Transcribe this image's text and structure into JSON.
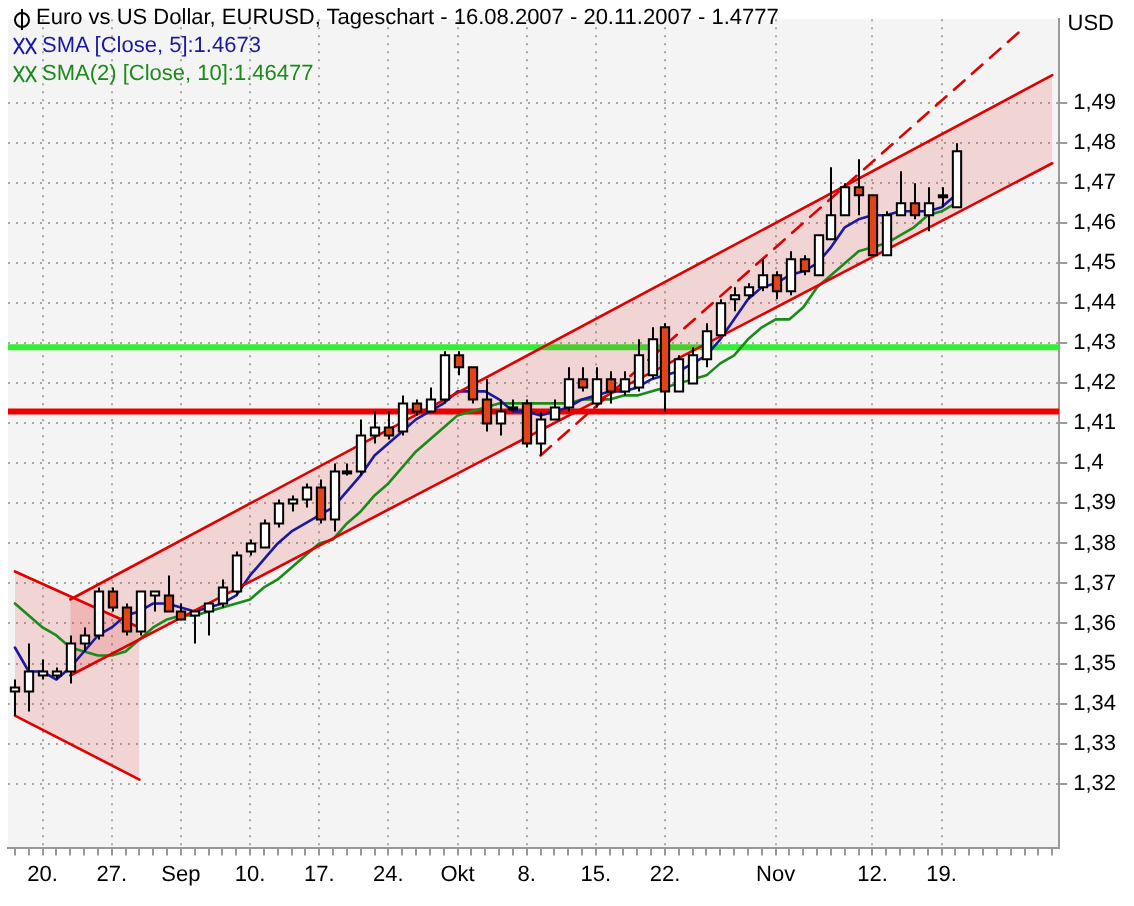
{
  "chart_data": {
    "type": "candlestick",
    "title": "Euro vs US Dollar, EURUSD, Tageschart - 16.08.2007 - 20.11.2007 - 1.4777",
    "ylabel": "USD",
    "categories": [
      null,
      null,
      "20.",
      null,
      null,
      null,
      null,
      "27.",
      null,
      null,
      null,
      null,
      "Sep",
      null,
      null,
      null,
      null,
      "10.",
      null,
      null,
      null,
      null,
      "17.",
      null,
      null,
      null,
      null,
      "24.",
      null,
      null,
      null,
      null,
      "Okt",
      null,
      null,
      null,
      null,
      "8.",
      null,
      null,
      null,
      null,
      "15.",
      null,
      null,
      null,
      null,
      "22.",
      null,
      null,
      null,
      null,
      null,
      null,
      null,
      "Nov",
      null,
      null,
      null,
      null,
      null,
      null,
      "12.",
      null,
      null,
      null,
      null,
      "19.",
      null,
      null,
      null,
      null,
      null,
      null,
      null,
      null
    ],
    "ohlc": [
      [
        1.343,
        1.346,
        1.337,
        1.344
      ],
      [
        1.343,
        1.355,
        1.338,
        1.348
      ],
      [
        1.347,
        1.351,
        1.346,
        1.348
      ],
      [
        1.347,
        1.349,
        1.346,
        1.348
      ],
      [
        1.348,
        1.357,
        1.345,
        1.355
      ],
      [
        1.355,
        1.359,
        1.353,
        1.357
      ],
      [
        1.357,
        1.369,
        1.356,
        1.368
      ],
      [
        1.368,
        1.369,
        1.363,
        1.364
      ],
      [
        1.364,
        1.365,
        1.357,
        1.358
      ],
      [
        1.358,
        1.368,
        1.357,
        1.368
      ],
      [
        1.367,
        1.368,
        1.363,
        1.368
      ],
      [
        1.367,
        1.372,
        1.363,
        1.363
      ],
      [
        1.363,
        1.365,
        1.361,
        1.361
      ],
      [
        1.362,
        1.363,
        1.355,
        1.363
      ],
      [
        1.363,
        1.365,
        1.357,
        1.365
      ],
      [
        1.365,
        1.371,
        1.364,
        1.369
      ],
      [
        1.368,
        1.378,
        1.367,
        1.377
      ],
      [
        1.378,
        1.381,
        1.377,
        1.38
      ],
      [
        1.379,
        1.386,
        1.379,
        1.385
      ],
      [
        1.385,
        1.391,
        1.384,
        1.39
      ],
      [
        1.39,
        1.392,
        1.388,
        1.391
      ],
      [
        1.391,
        1.395,
        1.389,
        1.394
      ],
      [
        1.394,
        1.396,
        1.385,
        1.386
      ],
      [
        1.386,
        1.4,
        1.383,
        1.398
      ],
      [
        1.398,
        1.4,
        1.397,
        1.398
      ],
      [
        1.398,
        1.411,
        1.397,
        1.407
      ],
      [
        1.407,
        1.413,
        1.405,
        1.409
      ],
      [
        1.409,
        1.413,
        1.406,
        1.407
      ],
      [
        1.408,
        1.417,
        1.407,
        1.415
      ],
      [
        1.415,
        1.416,
        1.412,
        1.413
      ],
      [
        1.413,
        1.419,
        1.413,
        1.416
      ],
      [
        1.416,
        1.428,
        1.415,
        1.427
      ],
      [
        1.427,
        1.428,
        1.422,
        1.424
      ],
      [
        1.424,
        1.424,
        1.415,
        1.416
      ],
      [
        1.416,
        1.421,
        1.408,
        1.41
      ],
      [
        1.41,
        1.416,
        1.407,
        1.413
      ],
      [
        1.414,
        1.416,
        1.413,
        1.414
      ],
      [
        1.415,
        1.416,
        1.404,
        1.405
      ],
      [
        1.405,
        1.413,
        1.402,
        1.411
      ],
      [
        1.411,
        1.416,
        1.411,
        1.414
      ],
      [
        1.414,
        1.424,
        1.413,
        1.421
      ],
      [
        1.421,
        1.424,
        1.418,
        1.419
      ],
      [
        1.415,
        1.424,
        1.414,
        1.421
      ],
      [
        1.421,
        1.423,
        1.415,
        1.418
      ],
      [
        1.418,
        1.423,
        1.417,
        1.421
      ],
      [
        1.419,
        1.431,
        1.418,
        1.427
      ],
      [
        1.422,
        1.434,
        1.421,
        1.431
      ],
      [
        1.434,
        1.435,
        1.413,
        1.418
      ],
      [
        1.418,
        1.427,
        1.418,
        1.426
      ],
      [
        1.42,
        1.429,
        1.42,
        1.427
      ],
      [
        1.426,
        1.435,
        1.424,
        1.433
      ],
      [
        1.432,
        1.441,
        1.432,
        1.44
      ],
      [
        1.441,
        1.444,
        1.438,
        1.442
      ],
      [
        1.442,
        1.445,
        1.441,
        1.444
      ],
      [
        1.444,
        1.451,
        1.443,
        1.447
      ],
      [
        1.447,
        1.448,
        1.441,
        1.443
      ],
      [
        1.443,
        1.453,
        1.442,
        1.451
      ],
      [
        1.451,
        1.452,
        1.447,
        1.448
      ],
      [
        1.447,
        1.457,
        1.447,
        1.457
      ],
      [
        1.456,
        1.474,
        1.456,
        1.462
      ],
      [
        1.462,
        1.47,
        1.462,
        1.469
      ],
      [
        1.469,
        1.476,
        1.462,
        1.467
      ],
      [
        1.467,
        1.467,
        1.452,
        1.452
      ],
      [
        1.452,
        1.463,
        1.452,
        1.462
      ],
      [
        1.462,
        1.473,
        1.462,
        1.465
      ],
      [
        1.465,
        1.47,
        1.461,
        1.462
      ],
      [
        1.462,
        1.469,
        1.458,
        1.465
      ],
      [
        1.467,
        1.469,
        1.464,
        1.467
      ],
      [
        1.464,
        1.48,
        1.464,
        1.478
      ],
      null,
      null,
      null,
      null,
      null,
      null,
      null
    ],
    "colors": [
      "#ffffff",
      "#ffffff",
      "#ffffff",
      "#ffffff",
      "#ffffff",
      "#ffffff",
      "#ffffff",
      "#e04418",
      "#e04418",
      "#ffffff",
      "#ffffff",
      "#e04418",
      "#e04418",
      "#ffffff",
      "#ffffff",
      "#ffffff",
      "#ffffff",
      "#ffffff",
      "#ffffff",
      "#ffffff",
      "#ffffff",
      "#ffffff",
      "#e04418",
      "#ffffff",
      "#ffffff",
      "#ffffff",
      "#ffffff",
      "#e04418",
      "#ffffff",
      "#e04418",
      "#ffffff",
      "#ffffff",
      "#e04418",
      "#e04418",
      "#e04418",
      "#ffffff",
      "#ffffff",
      "#e04418",
      "#ffffff",
      "#ffffff",
      "#ffffff",
      "#e04418",
      "#ffffff",
      "#e04418",
      "#ffffff",
      "#ffffff",
      "#ffffff",
      "#e04418",
      "#ffffff",
      "#ffffff",
      "#ffffff",
      "#ffffff",
      "#ffffff",
      "#ffffff",
      "#ffffff",
      "#e04418",
      "#ffffff",
      "#e04418",
      "#ffffff",
      "#ffffff",
      "#ffffff",
      "#e04418",
      "#e04418",
      "#ffffff",
      "#ffffff",
      "#e04418",
      "#ffffff",
      "#ffffff",
      "#ffffff",
      null,
      null,
      null,
      null,
      null,
      null,
      null
    ],
    "series": [
      {
        "type": "line",
        "color": "#e00000",
        "upper": [
          null,
          null,
          null,
          null,
          1.366,
          null,
          null,
          null,
          null,
          null,
          null,
          null,
          null,
          null,
          null,
          null,
          null,
          null,
          null,
          null,
          null,
          null,
          null,
          null,
          null,
          null,
          null,
          null,
          null,
          null,
          null,
          null,
          null,
          null,
          null,
          null,
          null,
          null,
          null,
          null,
          null,
          null,
          null,
          null,
          null,
          null,
          null,
          null,
          null,
          null,
          null,
          null,
          null,
          null,
          null,
          null,
          null,
          null,
          null,
          null,
          null,
          null,
          null,
          null,
          null,
          null,
          null,
          null,
          null,
          null,
          null,
          null,
          null,
          null,
          null,
          1.497
        ],
        "values": [
          null,
          null,
          null,
          null,
          1.366,
          null,
          null,
          null,
          null,
          null,
          null,
          null,
          null,
          null,
          null,
          null,
          null,
          null,
          null,
          null,
          null,
          null,
          null,
          null,
          null,
          null,
          null,
          null,
          null,
          null,
          null,
          null,
          null,
          null,
          null,
          null,
          null,
          null,
          null,
          null,
          null,
          null,
          null,
          null,
          null,
          null,
          null,
          null,
          null,
          null,
          null,
          null,
          null,
          null,
          null,
          null,
          null,
          null,
          null,
          null,
          null,
          null,
          null,
          null,
          null,
          null,
          null,
          null,
          null,
          null,
          null,
          null,
          null,
          null,
          null,
          1.497
        ],
        "lower": [
          null,
          null,
          null,
          null,
          1.347,
          null,
          null,
          null,
          null,
          null,
          null,
          null,
          null,
          null,
          null,
          null,
          null,
          null,
          null,
          null,
          null,
          null,
          null,
          null,
          null,
          null,
          null,
          null,
          null,
          null,
          null,
          null,
          null,
          null,
          null,
          null,
          null,
          null,
          null,
          null,
          null,
          null,
          null,
          null,
          null,
          null,
          null,
          null,
          null,
          null,
          null,
          null,
          null,
          null,
          null,
          null,
          null,
          null,
          null,
          null,
          null,
          null,
          null,
          null,
          null,
          null,
          null,
          null,
          null,
          null,
          null,
          null,
          null,
          null,
          null,
          1.475
        ]
      },
      {
        "type": "line",
        "color": "#e00000",
        "upper": [
          1.373,
          null,
          null,
          null,
          null,
          null,
          null,
          null,
          null,
          1.359,
          null,
          null,
          null,
          null,
          null,
          null,
          null,
          null,
          null,
          null,
          null,
          null,
          null,
          null,
          null,
          null,
          null,
          null,
          null,
          null,
          null,
          null,
          null,
          null,
          null,
          null,
          null,
          null,
          null,
          null,
          null,
          null,
          null,
          null,
          null,
          null,
          null,
          null,
          null,
          null,
          null,
          null,
          null,
          null,
          null,
          null,
          null,
          null,
          null,
          null,
          null,
          null,
          null,
          null,
          null,
          null,
          null,
          null,
          null,
          null,
          null,
          null,
          null,
          null,
          null,
          null
        ],
        "values": [
          1.373,
          null,
          null,
          null,
          null,
          null,
          null,
          null,
          null,
          1.359,
          null,
          null,
          null,
          null,
          null,
          null,
          null,
          null,
          null,
          null,
          null,
          null,
          null,
          null,
          null,
          null,
          null,
          null,
          null,
          null,
          null,
          null,
          null,
          null,
          null,
          null,
          null,
          null,
          null,
          null,
          null,
          null,
          null,
          null,
          null,
          null,
          null,
          null,
          null,
          null,
          null,
          null,
          null,
          null,
          null,
          null,
          null,
          null,
          null,
          null,
          null,
          null,
          null,
          null,
          null,
          null,
          null,
          null,
          null,
          null,
          null,
          null,
          null,
          null,
          null,
          null
        ],
        "lower": [
          1.337,
          null,
          null,
          null,
          null,
          null,
          null,
          null,
          null,
          1.321,
          null,
          null,
          null,
          null,
          null,
          null,
          null,
          null,
          null,
          null,
          null,
          null,
          null,
          null,
          null,
          null,
          null,
          null,
          null,
          null,
          null,
          null,
          null,
          null,
          null,
          null,
          null,
          null,
          null,
          null,
          null,
          null,
          null,
          null,
          null,
          null,
          null,
          null,
          null,
          null,
          null,
          null,
          null,
          null,
          null,
          null,
          null,
          null,
          null,
          null,
          null,
          null,
          null,
          null,
          null,
          null,
          null,
          null,
          null,
          null,
          null,
          null,
          null,
          null,
          null,
          null
        ]
      },
      {
        "type": "line",
        "color": "#e00000",
        "values": [
          null,
          null,
          null,
          null,
          1.347,
          null,
          null,
          null,
          null,
          null,
          null,
          null,
          null,
          null,
          null,
          null,
          null,
          null,
          null,
          null,
          null,
          null,
          null,
          null,
          null,
          null,
          null,
          null,
          null,
          null,
          null,
          null,
          null,
          null,
          null,
          null,
          null,
          null,
          null,
          null,
          null,
          null,
          null,
          null,
          null,
          null,
          null,
          null,
          null,
          null,
          null,
          null,
          null,
          null,
          null,
          null,
          null,
          null,
          null,
          null,
          null,
          null,
          null,
          null,
          null,
          null,
          null,
          null,
          null,
          null,
          null,
          null,
          null,
          null,
          null,
          1.475
        ]
      },
      {
        "type": "line",
        "color": "#e00000",
        "values": [
          1.337,
          null,
          null,
          null,
          null,
          null,
          null,
          null,
          null,
          1.321,
          null,
          null,
          null,
          null,
          null,
          null,
          null,
          null,
          null,
          null,
          null,
          null,
          null,
          null,
          null,
          null,
          null,
          null,
          null,
          null,
          null,
          null,
          null,
          null,
          null,
          null,
          null,
          null,
          null,
          null,
          null,
          null,
          null,
          null,
          null,
          null,
          null,
          null,
          null,
          null,
          null,
          null,
          null,
          null,
          null,
          null,
          null,
          null,
          null,
          null,
          null,
          null,
          null,
          null,
          null,
          null,
          null,
          null,
          null,
          null,
          null,
          null,
          null,
          null,
          null,
          null
        ]
      },
      {
        "type": "line",
        "color": "#e00000",
        "line_style": "dashed",
        "values": [
          null,
          null,
          null,
          null,
          null,
          null,
          null,
          null,
          null,
          null,
          null,
          null,
          null,
          null,
          null,
          null,
          null,
          null,
          null,
          null,
          null,
          null,
          null,
          null,
          null,
          null,
          null,
          null,
          null,
          null,
          null,
          null,
          null,
          null,
          null,
          null,
          null,
          null,
          1.402,
          null,
          null,
          null,
          null,
          null,
          null,
          null,
          null,
          null,
          null,
          null,
          null,
          null,
          null,
          null,
          null,
          null,
          null,
          null,
          null,
          null,
          null,
          null,
          null,
          null,
          null,
          null,
          null,
          null,
          null,
          null,
          null,
          null,
          null,
          1.509,
          null,
          null
        ]
      },
      {
        "type": "line",
        "name": "SMA [Close, 5]:1.4673",
        "color": "#1a1aa0",
        "values": [
          1.354,
          1.348,
          1.348,
          1.346,
          1.349,
          1.353,
          1.357,
          1.359,
          1.362,
          1.363,
          1.365,
          1.365,
          1.364,
          1.363,
          1.364,
          1.365,
          1.367,
          1.372,
          1.376,
          1.38,
          1.383,
          1.385,
          1.387,
          1.389,
          1.393,
          1.397,
          1.402,
          1.405,
          1.408,
          1.411,
          1.413,
          1.415,
          1.418,
          1.418,
          1.418,
          1.416,
          1.413,
          1.413,
          1.412,
          1.413,
          1.414,
          1.416,
          1.417,
          1.418,
          1.418,
          1.419,
          1.421,
          1.422,
          1.423,
          1.425,
          1.427,
          1.431,
          1.436,
          1.441,
          1.444,
          1.445,
          1.447,
          1.448,
          1.45,
          1.454,
          1.459,
          1.461,
          1.462,
          1.462,
          1.463,
          1.463,
          1.463,
          1.464,
          1.467,
          null,
          null,
          null,
          null,
          null,
          null,
          null
        ]
      },
      {
        "type": "line",
        "name": "SMA(2) [Close, 10]:1.46477",
        "color": "#1a8a1a",
        "values": [
          1.365,
          1.362,
          1.359,
          1.357,
          1.354,
          1.353,
          1.352,
          1.352,
          1.353,
          1.356,
          1.359,
          1.361,
          1.362,
          1.362,
          1.363,
          1.364,
          1.365,
          1.366,
          1.369,
          1.371,
          1.374,
          1.377,
          1.38,
          1.381,
          1.385,
          1.388,
          1.392,
          1.395,
          1.399,
          1.403,
          1.406,
          1.409,
          1.412,
          1.413,
          1.414,
          1.415,
          1.415,
          1.415,
          1.415,
          1.415,
          1.415,
          1.416,
          1.416,
          1.416,
          1.417,
          1.417,
          1.418,
          1.419,
          1.42,
          1.421,
          1.422,
          1.425,
          1.427,
          1.431,
          1.434,
          1.436,
          1.436,
          1.439,
          1.444,
          1.447,
          1.45,
          1.453,
          1.454,
          1.455,
          1.457,
          1.459,
          1.462,
          1.463,
          1.465,
          null,
          null,
          null,
          null,
          null,
          null,
          null
        ]
      }
    ],
    "ref_lines": [
      {
        "axis": "y",
        "value": 1.429,
        "color": "#33ee33"
      },
      {
        "axis": "y",
        "value": 1.413,
        "color": "#ee0000"
      }
    ],
    "ylim": [
      1.304,
      1.511
    ],
    "yticks": [
      {
        "value": 1.32,
        "label": "1,32"
      },
      {
        "value": 1.33,
        "label": "1,33"
      },
      {
        "value": 1.34,
        "label": "1,34"
      },
      {
        "value": 1.35,
        "label": "1,35"
      },
      {
        "value": 1.36,
        "label": "1,36"
      },
      {
        "value": 1.37,
        "label": "1,37"
      },
      {
        "value": 1.38,
        "label": "1,38"
      },
      {
        "value": 1.39,
        "label": "1,39"
      },
      {
        "value": 1.4,
        "label": "1,4"
      },
      {
        "value": 1.41,
        "label": "1,41"
      },
      {
        "value": 1.42,
        "label": "1,42"
      },
      {
        "value": 1.43,
        "label": "1,43"
      },
      {
        "value": 1.44,
        "label": "1,44"
      },
      {
        "value": 1.45,
        "label": "1,45"
      },
      {
        "value": 1.46,
        "label": "1,46"
      },
      {
        "value": 1.47,
        "label": "1,47"
      },
      {
        "value": 1.48,
        "label": "1,48"
      },
      {
        "value": 1.49,
        "label": "1,49"
      }
    ],
    "grid": true,
    "legend": "top left"
  }
}
